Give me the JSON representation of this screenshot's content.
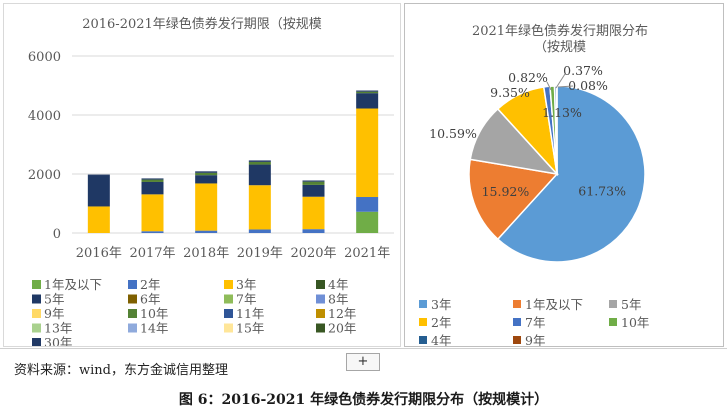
{
  "chart_data": [
    {
      "type": "bar",
      "stacked": true,
      "title": "2016-2021年绿色债券发行期限（按规模",
      "categories": [
        "2016年",
        "2017年",
        "2018年",
        "2019年",
        "2020年",
        "2021年"
      ],
      "ylim": [
        0,
        6000
      ],
      "yticks": [
        0,
        2000,
        4000,
        6000
      ],
      "grid": true,
      "legend_position": "bottom",
      "series": [
        {
          "name": "1年及以下",
          "color": "#70ad47",
          "values": [
            0,
            0,
            0,
            0,
            0,
            720
          ]
        },
        {
          "name": "2年",
          "color": "#4472c4",
          "values": [
            0,
            60,
            80,
            120,
            130,
            500
          ]
        },
        {
          "name": "3年",
          "color": "#ffc000",
          "values": [
            900,
            1250,
            1600,
            1500,
            1100,
            3000
          ]
        },
        {
          "name": "4年",
          "color": "#375623",
          "values": [
            0,
            0,
            0,
            0,
            0,
            0
          ]
        },
        {
          "name": "5年",
          "color": "#1f3864",
          "values": [
            1050,
            420,
            280,
            700,
            400,
            520
          ]
        },
        {
          "name": "6年",
          "color": "#7f6000",
          "values": [
            0,
            0,
            0,
            0,
            0,
            0
          ]
        },
        {
          "name": "7年",
          "color": "#8fbc5a",
          "values": [
            0,
            0,
            0,
            0,
            0,
            0
          ]
        },
        {
          "name": "8年",
          "color": "#6f8fd6",
          "values": [
            0,
            0,
            0,
            0,
            0,
            0
          ]
        },
        {
          "name": "9年",
          "color": "#ffd966",
          "values": [
            0,
            0,
            0,
            0,
            0,
            0
          ]
        },
        {
          "name": "10年",
          "color": "#548235",
          "values": [
            0,
            80,
            80,
            90,
            110,
            50
          ]
        },
        {
          "name": "11年",
          "color": "#2f5597",
          "values": [
            0,
            0,
            0,
            0,
            0,
            0
          ]
        },
        {
          "name": "12年",
          "color": "#bf8f00",
          "values": [
            0,
            0,
            0,
            0,
            0,
            0
          ]
        },
        {
          "name": "13年",
          "color": "#a9d18e",
          "values": [
            0,
            0,
            0,
            0,
            0,
            0
          ]
        },
        {
          "name": "14年",
          "color": "#8faadc",
          "values": [
            0,
            0,
            0,
            0,
            0,
            0
          ]
        },
        {
          "name": "15年",
          "color": "#ffe699",
          "values": [
            0,
            0,
            0,
            0,
            0,
            0
          ]
        },
        {
          "name": "20年",
          "color": "#385723",
          "values": [
            0,
            0,
            0,
            0,
            0,
            0
          ]
        },
        {
          "name": "30年",
          "color": "#203864",
          "values": [
            30,
            40,
            50,
            50,
            40,
            40
          ]
        }
      ]
    },
    {
      "type": "pie",
      "title_lines": [
        "2021年绿色债券发行期限分布",
        "（按规模"
      ],
      "slices": [
        {
          "name": "3年",
          "value": 61.73,
          "label": "61.73%",
          "color": "#5b9bd5"
        },
        {
          "name": "1年及以下",
          "value": 15.92,
          "label": "15.92%",
          "color": "#ed7d31"
        },
        {
          "name": "5年",
          "value": 10.59,
          "label": "10.59%",
          "color": "#a5a5a5"
        },
        {
          "name": "2年",
          "value": 9.35,
          "label": "9.35%",
          "color": "#ffc000"
        },
        {
          "name": "7年",
          "value": 1.13,
          "label": "1.13%",
          "color": "#4472c4"
        },
        {
          "name": "10年",
          "value": 0.82,
          "label": "0.82%",
          "color": "#70ad47"
        },
        {
          "name": "4年",
          "value": 0.37,
          "label": "0.37%",
          "color": "#255e91"
        },
        {
          "name": "9年",
          "value": 0.08,
          "label": "0.08%",
          "color": "#9e480e"
        }
      ],
      "legend_position": "bottom"
    }
  ],
  "source_note": "资料来源：wind，东方金诚信用整理",
  "expand_label": "+",
  "caption": "图 6：2016-2021 年绿色债券发行期限分布（按规模计）"
}
